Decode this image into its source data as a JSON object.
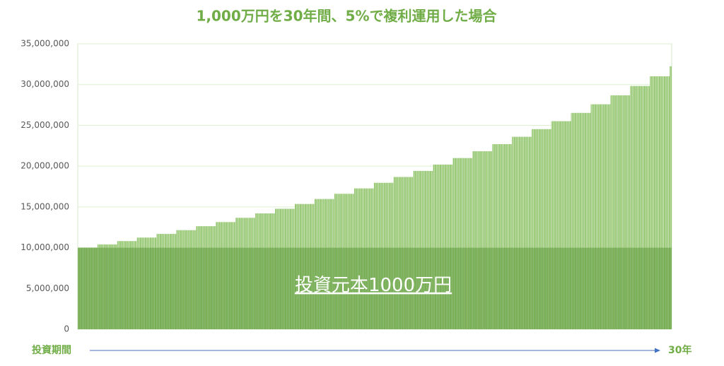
{
  "chart_data": {
    "type": "bar",
    "title": "1,000万円を30年間、5%で複利運用した場合",
    "annotation": "投資元本1000万円",
    "principal": 10000000,
    "x_start_label": "投資期間",
    "x_end_label": "30年",
    "color": "#8dc266",
    "principal_color": "#4e8f2a",
    "values": [
      10000000,
      10398000,
      10812000,
      11242000,
      11689000,
      12154000,
      12638000,
      13141000,
      13664000,
      14208000,
      14774000,
      15362000,
      15973000,
      16609000,
      17270000,
      17957000,
      18672000,
      19415000,
      20188000,
      20992000,
      21827000,
      22696000,
      23599000,
      24539000,
      25515000,
      26531000,
      27587000,
      28685000,
      29827000,
      31014000,
      32248000
    ],
    "ylim": [
      0,
      35000000
    ],
    "yticks": [
      0,
      {
        "value": 5000000,
        "label": "5,000,000"
      },
      {
        "value": 10000000,
        "label": "10,000,000"
      },
      {
        "value": 15000000,
        "label": "15,000,000"
      },
      {
        "value": 20000000,
        "label": "20,000,000"
      },
      {
        "value": 25000000,
        "label": "25,000,000"
      },
      {
        "value": 30000000,
        "label": "30,000,000"
      },
      {
        "value": 35000000,
        "label": "35,000,000"
      }
    ],
    "grid": true
  }
}
